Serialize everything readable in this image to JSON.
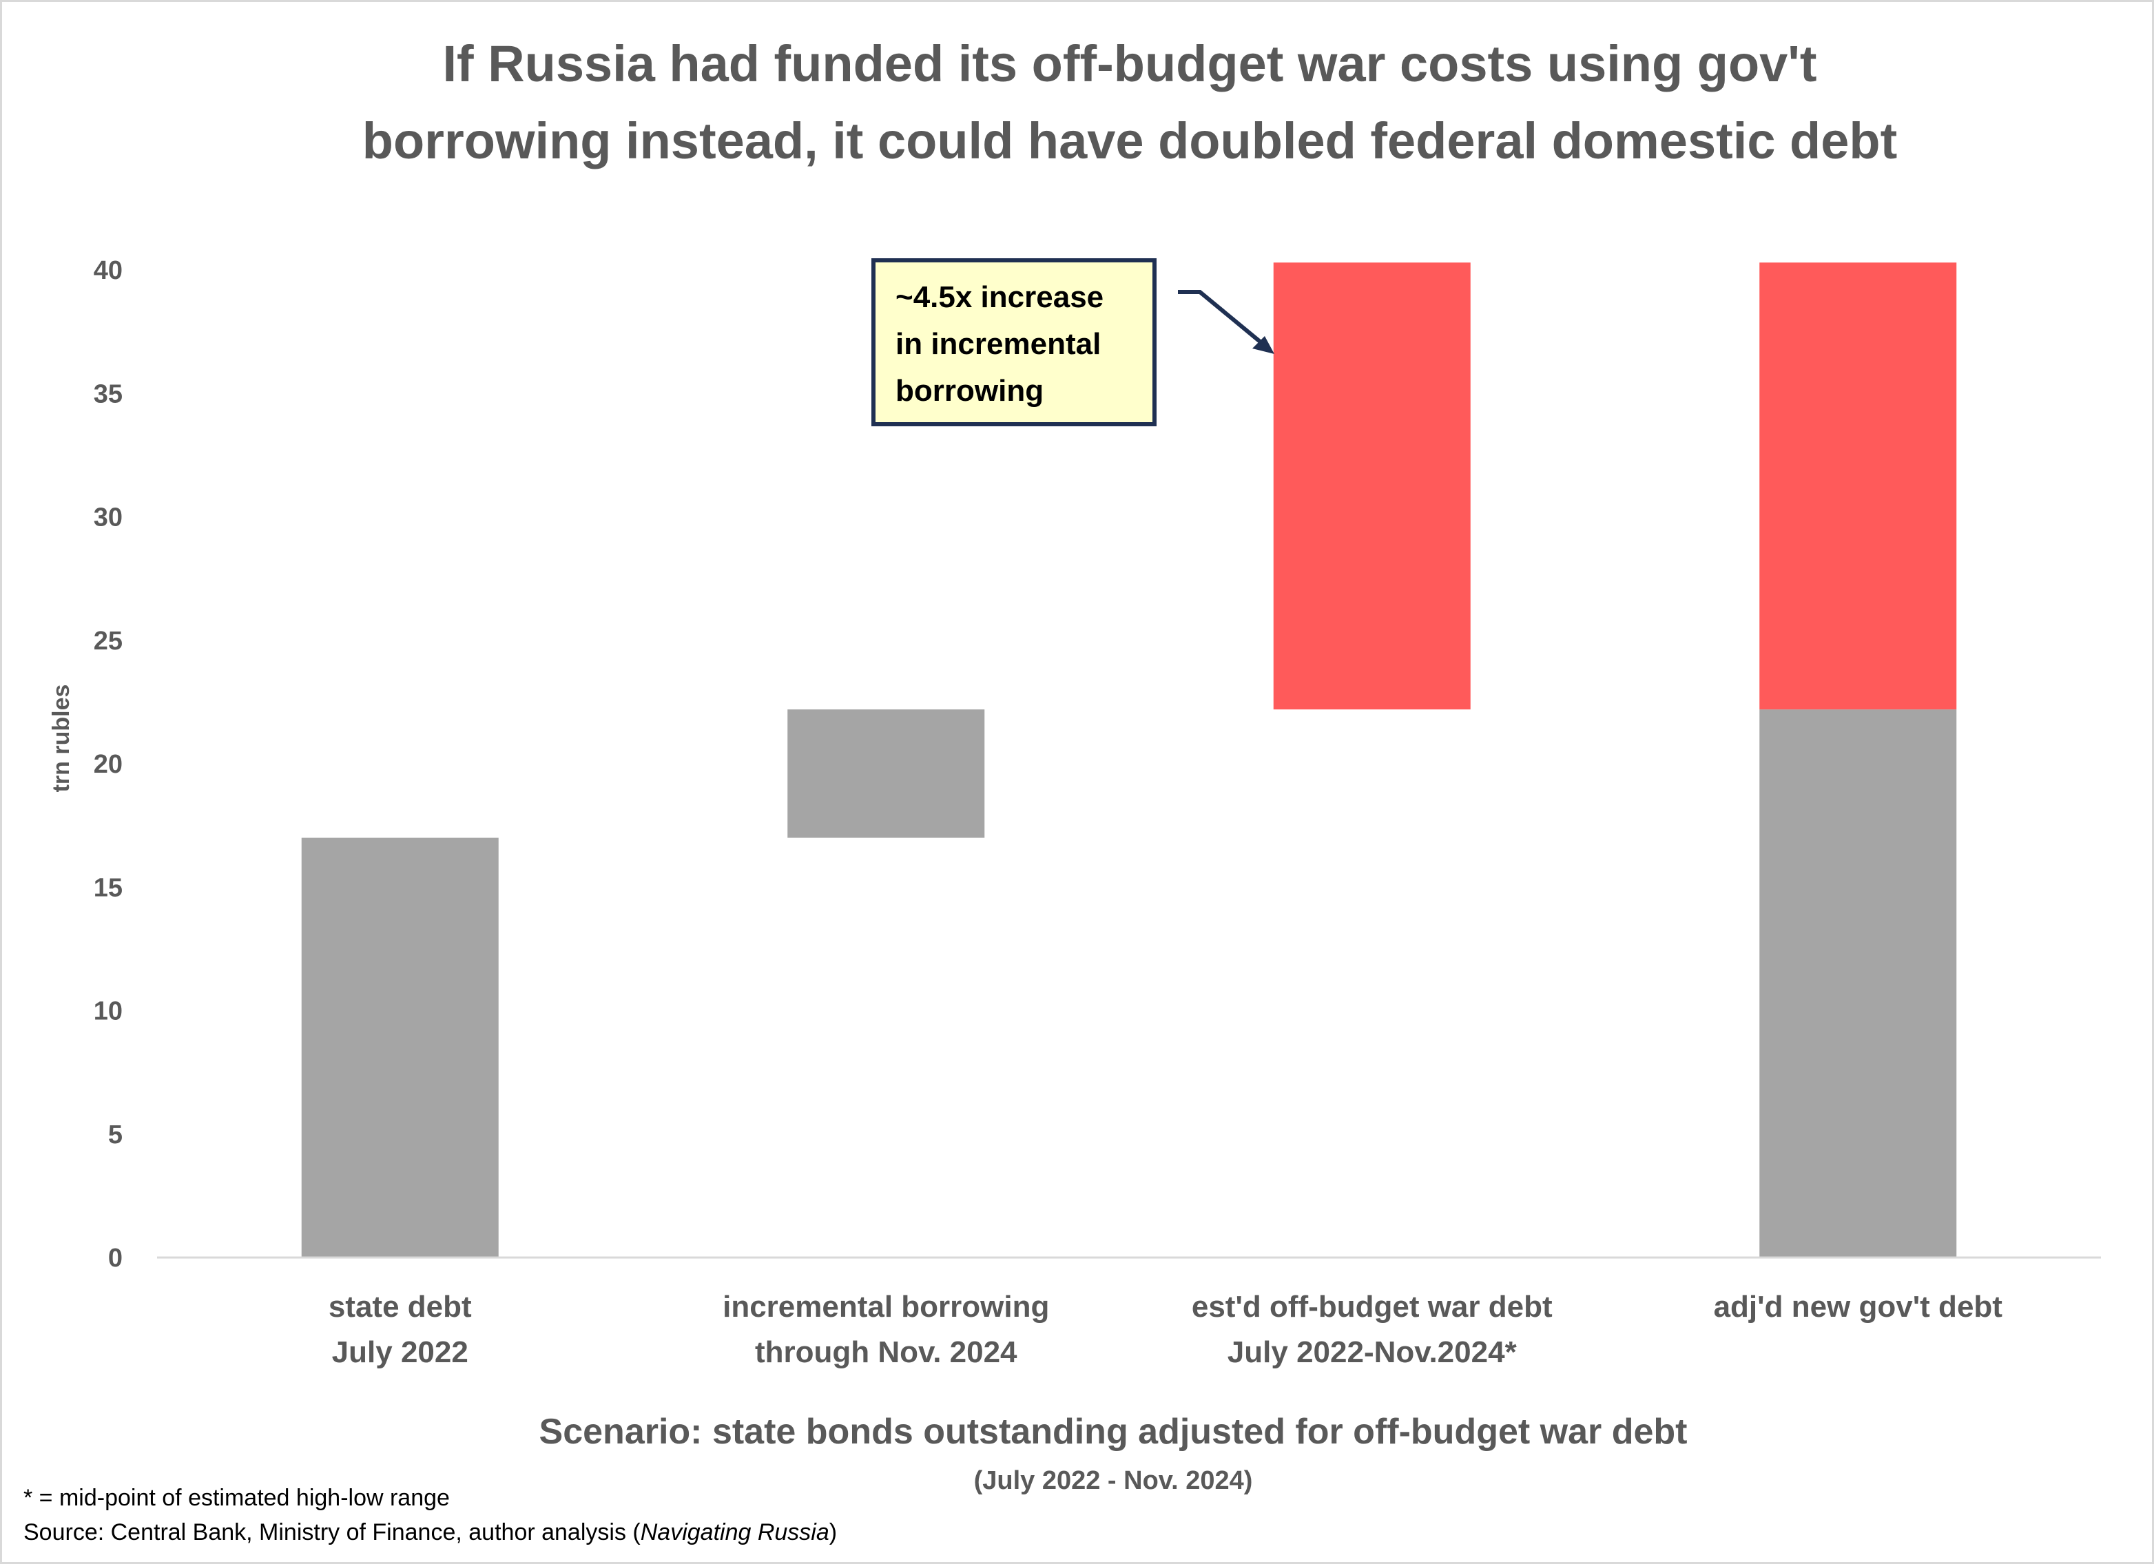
{
  "chart_data": {
    "type": "bar",
    "subtype": "waterfall-stacked",
    "title": "If Russia had funded its off-budget war costs using gov't borrowing instead, it could have doubled federal domestic debt",
    "title_lines": [
      "If Russia had funded its off-budget war costs using gov't",
      "borrowing instead, it could have doubled federal domestic debt"
    ],
    "ylabel": "trn rubles",
    "xlabel": "Scenario: state bonds outstanding  adjusted for off-budget war debt",
    "xlabel_sub": "(July 2022 - Nov. 2024)",
    "ylim": [
      0,
      40
    ],
    "yticks": [
      "0",
      "5",
      "10",
      "15",
      "20",
      "25",
      "30",
      "35",
      "40"
    ],
    "grid": false,
    "categories": [
      [
        "state debt",
        "July 2022"
      ],
      [
        "incremental borrowing",
        "through Nov. 2024"
      ],
      [
        "est'd off-budget war debt",
        "July 2022-Nov.2024*"
      ],
      [
        "adj'd new gov't debt"
      ]
    ],
    "bars": [
      {
        "base": 0,
        "value": 17.0,
        "color": "#a5a5a5"
      },
      {
        "base": 17.0,
        "value": 5.2,
        "color": "#a5a5a5"
      },
      {
        "base": 22.2,
        "value": 18.1,
        "color": "#ff5a5a"
      },
      {
        "base": 0,
        "value": 22.2,
        "color": "#a5a5a5"
      },
      {
        "base": 22.2,
        "value": 18.1,
        "color": "#ff5a5a"
      }
    ],
    "bar_category_index": [
      0,
      1,
      2,
      3,
      3
    ],
    "annotation": {
      "lines": [
        "~4.5x increase",
        "in incremental",
        "borrowing"
      ],
      "fill": "#ffffcc",
      "border": "#1f3052"
    },
    "footnotes": {
      "asterisk": "* = mid-point of estimated high-low range",
      "source_prefix": "Source: Central Bank, Ministry of Finance, author analysis (",
      "source_italic": "Navigating Russia",
      "source_suffix": ")"
    }
  }
}
